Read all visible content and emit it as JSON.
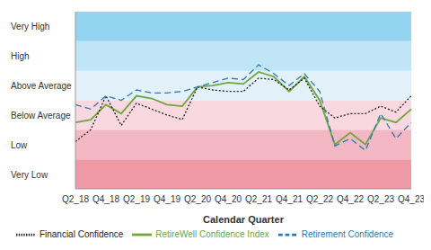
{
  "chart_data": {
    "type": "line",
    "x_label": "Calendar Quarter",
    "categories": [
      "Q2_18",
      null,
      "Q4_18",
      null,
      "Q2_19",
      null,
      "Q4_19",
      null,
      "Q2_20",
      null,
      "Q4_20",
      null,
      "Q2_21",
      null,
      "Q4_21",
      null,
      "Q2_22",
      null,
      "Q4_22",
      null,
      "Q2_23",
      null,
      "Q4_23"
    ],
    "series": [
      {
        "name": "RetireWell Confidence Index",
        "color": "#6fa53a",
        "line_style": "solid",
        "values": [
          2.25,
          2.34,
          2.85,
          2.55,
          3.15,
          3.06,
          2.85,
          2.8,
          3.45,
          3.5,
          3.6,
          3.55,
          3.96,
          3.8,
          3.3,
          3.8,
          3.0,
          1.5,
          1.9,
          1.5,
          2.4,
          2.25,
          2.7
        ]
      },
      {
        "name": "Financial Confidence",
        "color": "#222222",
        "line_style": "dotted",
        "values": [
          1.6,
          2.0,
          3.15,
          2.15,
          2.9,
          2.7,
          2.5,
          2.35,
          3.45,
          3.35,
          3.3,
          3.3,
          3.75,
          3.7,
          3.35,
          3.75,
          2.8,
          2.4,
          2.55,
          2.55,
          2.8,
          2.6,
          3.15
        ]
      },
      {
        "name": "Retirement Confidence",
        "color": "#2a7ab0",
        "line_style": "dashed",
        "values": [
          2.85,
          2.7,
          3.15,
          3.0,
          3.35,
          3.25,
          3.25,
          3.3,
          3.45,
          3.6,
          3.75,
          3.7,
          4.2,
          3.9,
          3.5,
          3.9,
          3.3,
          1.45,
          1.7,
          1.3,
          2.55,
          1.7,
          2.25
        ]
      }
    ],
    "ylim": [
      0,
      6
    ],
    "yticks": [
      {
        "value": 0.5,
        "label": "Very Low"
      },
      {
        "value": 1.5,
        "label": "Low"
      },
      {
        "value": 2.5,
        "label": "Below Average"
      },
      {
        "value": 3.5,
        "label": "Above Average"
      },
      {
        "value": 4.5,
        "label": "High"
      },
      {
        "value": 5.5,
        "label": "Very High"
      }
    ],
    "bands": [
      [
        0,
        1
      ],
      [
        1,
        2
      ],
      [
        2,
        3
      ],
      [
        3,
        4
      ],
      [
        4,
        5
      ],
      [
        5,
        6
      ]
    ],
    "band_colors": [
      "#ef98a6",
      "#f4b8c4",
      "#f9d8e0",
      "#e3f2fa",
      "#c0e5f7",
      "#93d4f1"
    ],
    "grid": false
  }
}
